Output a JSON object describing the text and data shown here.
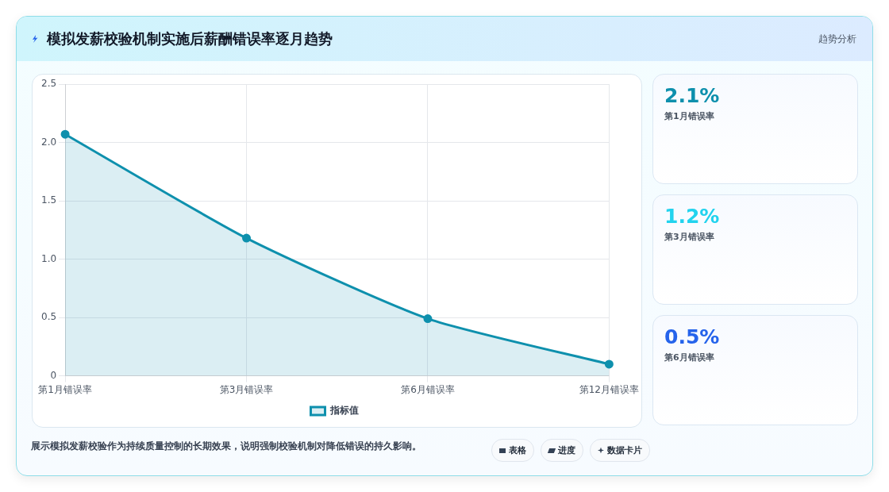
{
  "chart_data": [
    {
      "type": "area",
      "title": "模拟发薪校验机制实施后薪酬错误率逐月趋势",
      "categories": [
        "第1月错误率",
        "第3月错误率",
        "第6月错误率",
        "第12月错误率"
      ],
      "series": [
        {
          "name": "指标值",
          "color": "#0e90ad",
          "values": [
            2.07,
            1.18,
            0.49,
            0.1
          ]
        }
      ],
      "ylim": [
        0,
        2.5
      ],
      "yticks": [
        0,
        0.5,
        {
          "value": 1,
          "label": "1.0"
        },
        1.5,
        {
          "value": 2,
          "label": "2.0"
        },
        2.5
      ],
      "grid": true,
      "legend": "bottom",
      "marker": "circle",
      "annotations": [
        "趋势分析",
        "展示模拟发薪校验作为持续质量控制的长期效果，说明强制校验机制对降低错误的持久影响。",
        "表格",
        "进度",
        "数据卡片"
      ]
    },
    {
      "type": "other",
      "annotations": [
        "2.1%",
        "第1月错误率",
        "1.2%",
        "第3月错误率",
        "0.5%",
        "第6月错误率"
      ]
    }
  ]
}
